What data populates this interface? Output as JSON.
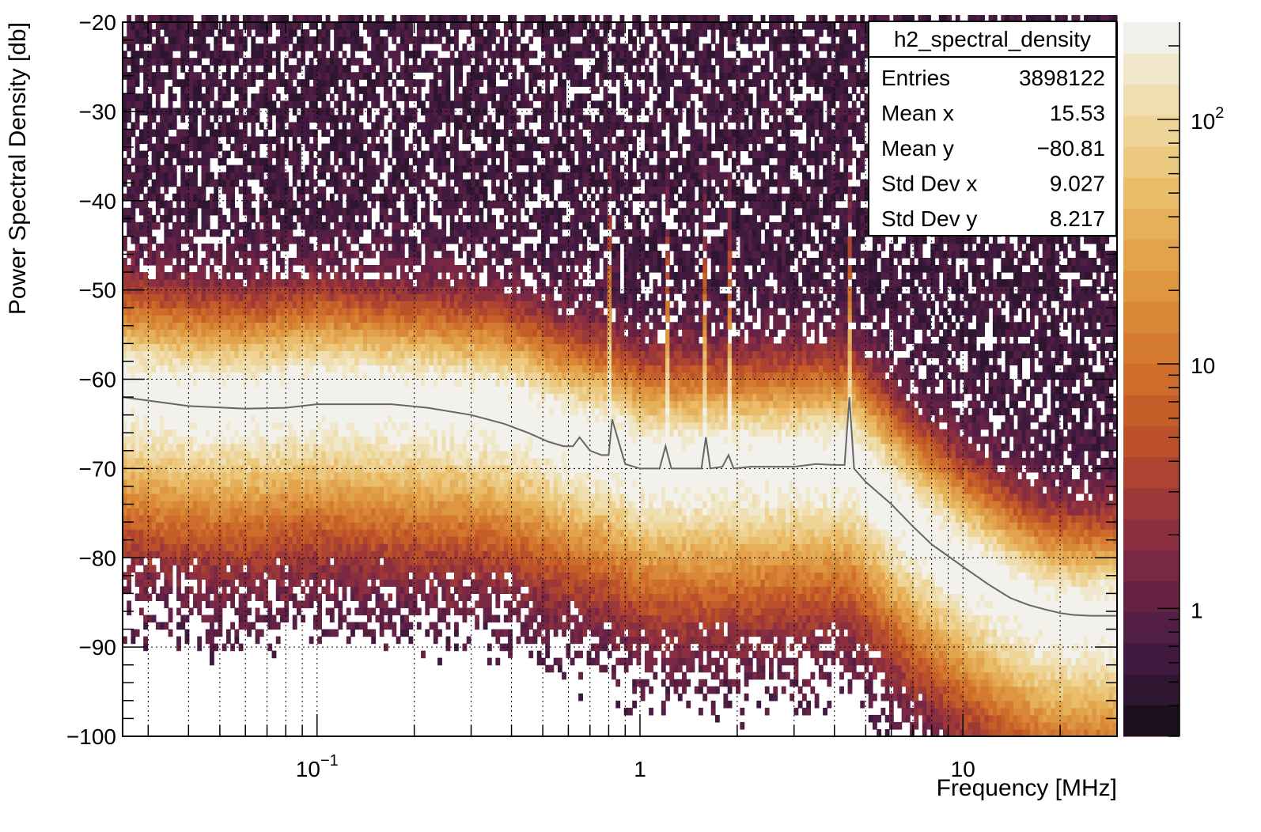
{
  "chart_data": {
    "type": "heatmap",
    "xlabel": "Frequency [MHz]",
    "ylabel": "Power Spectral Density [db]",
    "x_scale": "log",
    "xlim": [
      0.025,
      30
    ],
    "ylim": [
      -100,
      -20
    ],
    "x_tick_labels": [
      {
        "value": 0.1,
        "mantissa": "10",
        "exponent": "−1"
      },
      {
        "value": 1,
        "mantissa": "1",
        "exponent": ""
      },
      {
        "value": 10,
        "mantissa": "10",
        "exponent": ""
      }
    ],
    "y_tick_labels": [
      {
        "value": -20,
        "label": "−20"
      },
      {
        "value": -30,
        "label": "−30"
      },
      {
        "value": -40,
        "label": "−40"
      },
      {
        "value": -50,
        "label": "−50"
      },
      {
        "value": -60,
        "label": "−60"
      },
      {
        "value": -70,
        "label": "−70"
      },
      {
        "value": -80,
        "label": "−80"
      },
      {
        "value": -90,
        "label": "−90"
      },
      {
        "value": -100,
        "label": "−100"
      }
    ],
    "grid": true,
    "colorbar": {
      "scale": "log",
      "range": [
        0.3,
        250
      ],
      "tick_labels": [
        {
          "value": 1,
          "mantissa": "1",
          "exponent": ""
        },
        {
          "value": 10,
          "mantissa": "10",
          "exponent": ""
        },
        {
          "value": 100,
          "mantissa": "10",
          "exponent": "2"
        }
      ],
      "colors": [
        "#1d0f1c",
        "#2e1530",
        "#3f1a3e",
        "#521e44",
        "#652245",
        "#782844",
        "#8b2f3f",
        "#9d3838",
        "#ad4331",
        "#bb502b",
        "#c55e29",
        "#cd6c2b",
        "#d37a30",
        "#d98837",
        "#de9640",
        "#e2a34c",
        "#e6b05a",
        "#eabd6b",
        "#ecc980",
        "#eed497",
        "#efdeb0",
        "#f1e8cc",
        "#f2f1ec"
      ]
    },
    "ridge": {
      "x": [
        0.025,
        0.04,
        0.06,
        0.1,
        0.15,
        0.25,
        0.35,
        0.45,
        0.55,
        0.62,
        0.68,
        0.75,
        0.8,
        0.9,
        1.0,
        1.2,
        1.5,
        2.0,
        3.0,
        4.0,
        4.5,
        5.5,
        7,
        10,
        14,
        18,
        22,
        30
      ],
      "y": [
        -61,
        -62,
        -62.3,
        -61.5,
        -62,
        -62.5,
        -63,
        -64,
        -65.5,
        -66,
        -66.5,
        -66.8,
        -67,
        -68,
        -69,
        -69.2,
        -69.3,
        -69.2,
        -69,
        -68.8,
        -68.8,
        -72,
        -76,
        -80.5,
        -84,
        -86,
        -86.5,
        -86.5
      ]
    },
    "mean_line": {
      "x": [
        0.025,
        0.04,
        0.06,
        0.08,
        0.1,
        0.13,
        0.17,
        0.22,
        0.3,
        0.38,
        0.45,
        0.52,
        0.58,
        0.62,
        0.65,
        0.7,
        0.76,
        0.8,
        0.82,
        0.9,
        1.0,
        1.15,
        1.2,
        1.25,
        1.4,
        1.55,
        1.6,
        1.65,
        1.8,
        1.88,
        1.95,
        2.2,
        2.6,
        3.0,
        3.5,
        4.0,
        4.3,
        4.45,
        4.6,
        5.0,
        6.0,
        7.0,
        8.0,
        10,
        12,
        14,
        16,
        18,
        20,
        22,
        25,
        30
      ],
      "y": [
        -62,
        -63,
        -63.3,
        -63.2,
        -62.8,
        -62.8,
        -62.8,
        -63.2,
        -64,
        -65,
        -66,
        -67,
        -67.5,
        -67.5,
        -66.5,
        -68,
        -68.5,
        -68.5,
        -64.5,
        -69.5,
        -70,
        -70,
        -67.5,
        -70,
        -70,
        -70,
        -66.5,
        -70,
        -69.8,
        -68.5,
        -70,
        -69.8,
        -69.8,
        -69.8,
        -69.5,
        -69.6,
        -69.6,
        -62,
        -70,
        -71.5,
        -74,
        -76.5,
        -78.5,
        -81,
        -83,
        -84.5,
        -85.3,
        -85.8,
        -86.2,
        -86.4,
        -86.5,
        -86.5
      ]
    },
    "stats_box": {
      "title": "h2_spectral_density",
      "rows": [
        {
          "label": "Entries",
          "value": "3898122"
        },
        {
          "label": "Mean x",
          "value": "15.53"
        },
        {
          "label": "Mean y",
          "value": "−80.81"
        },
        {
          "label": "Std Dev x",
          "value": "9.027"
        },
        {
          "label": "Std Dev y",
          "value": "8.217"
        }
      ]
    }
  }
}
